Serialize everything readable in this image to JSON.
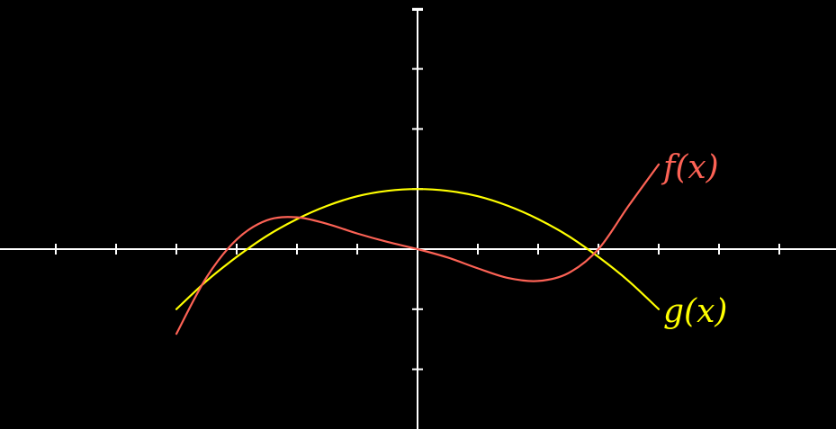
{
  "chart_data": {
    "type": "line",
    "title": "",
    "xlabel": "",
    "ylabel": "",
    "xlim": [
      -7,
      7
    ],
    "ylim": [
      -3.5,
      4
    ],
    "grid": false,
    "background": "#000000",
    "axis_color": "#ffffff",
    "x_ticks": [
      -6,
      -5,
      -4,
      -3,
      -2,
      -1,
      1,
      2,
      3,
      4,
      5,
      6
    ],
    "y_ticks": [
      -2,
      -1,
      1,
      2,
      3,
      4
    ],
    "series": [
      {
        "name": "f(x)",
        "color": "#fc6255",
        "x": [
          -4,
          -3.5,
          -3,
          -2.5,
          -2,
          -1.5,
          -1,
          -0.5,
          0,
          0.5,
          1,
          1.5,
          2,
          2.5,
          3,
          3.5,
          4
        ],
        "y": [
          -1.41,
          -0.47,
          0.16,
          0.48,
          0.53,
          0.42,
          0.26,
          0.12,
          0,
          -0.14,
          -0.32,
          -0.48,
          -0.53,
          -0.4,
          0,
          0.72,
          1.41
        ]
      },
      {
        "name": "g(x)",
        "color": "#ffff00",
        "x": [
          -4,
          -3.5,
          -3,
          -2.5,
          -2,
          -1.5,
          -1,
          -0.5,
          0,
          0.5,
          1,
          1.5,
          2,
          2.5,
          3,
          3.5,
          4
        ],
        "y": [
          -1,
          -0.53,
          -0.13,
          0.22,
          0.5,
          0.72,
          0.88,
          0.97,
          1,
          0.97,
          0.88,
          0.72,
          0.5,
          0.22,
          -0.13,
          -0.53,
          -1
        ]
      }
    ]
  }
}
